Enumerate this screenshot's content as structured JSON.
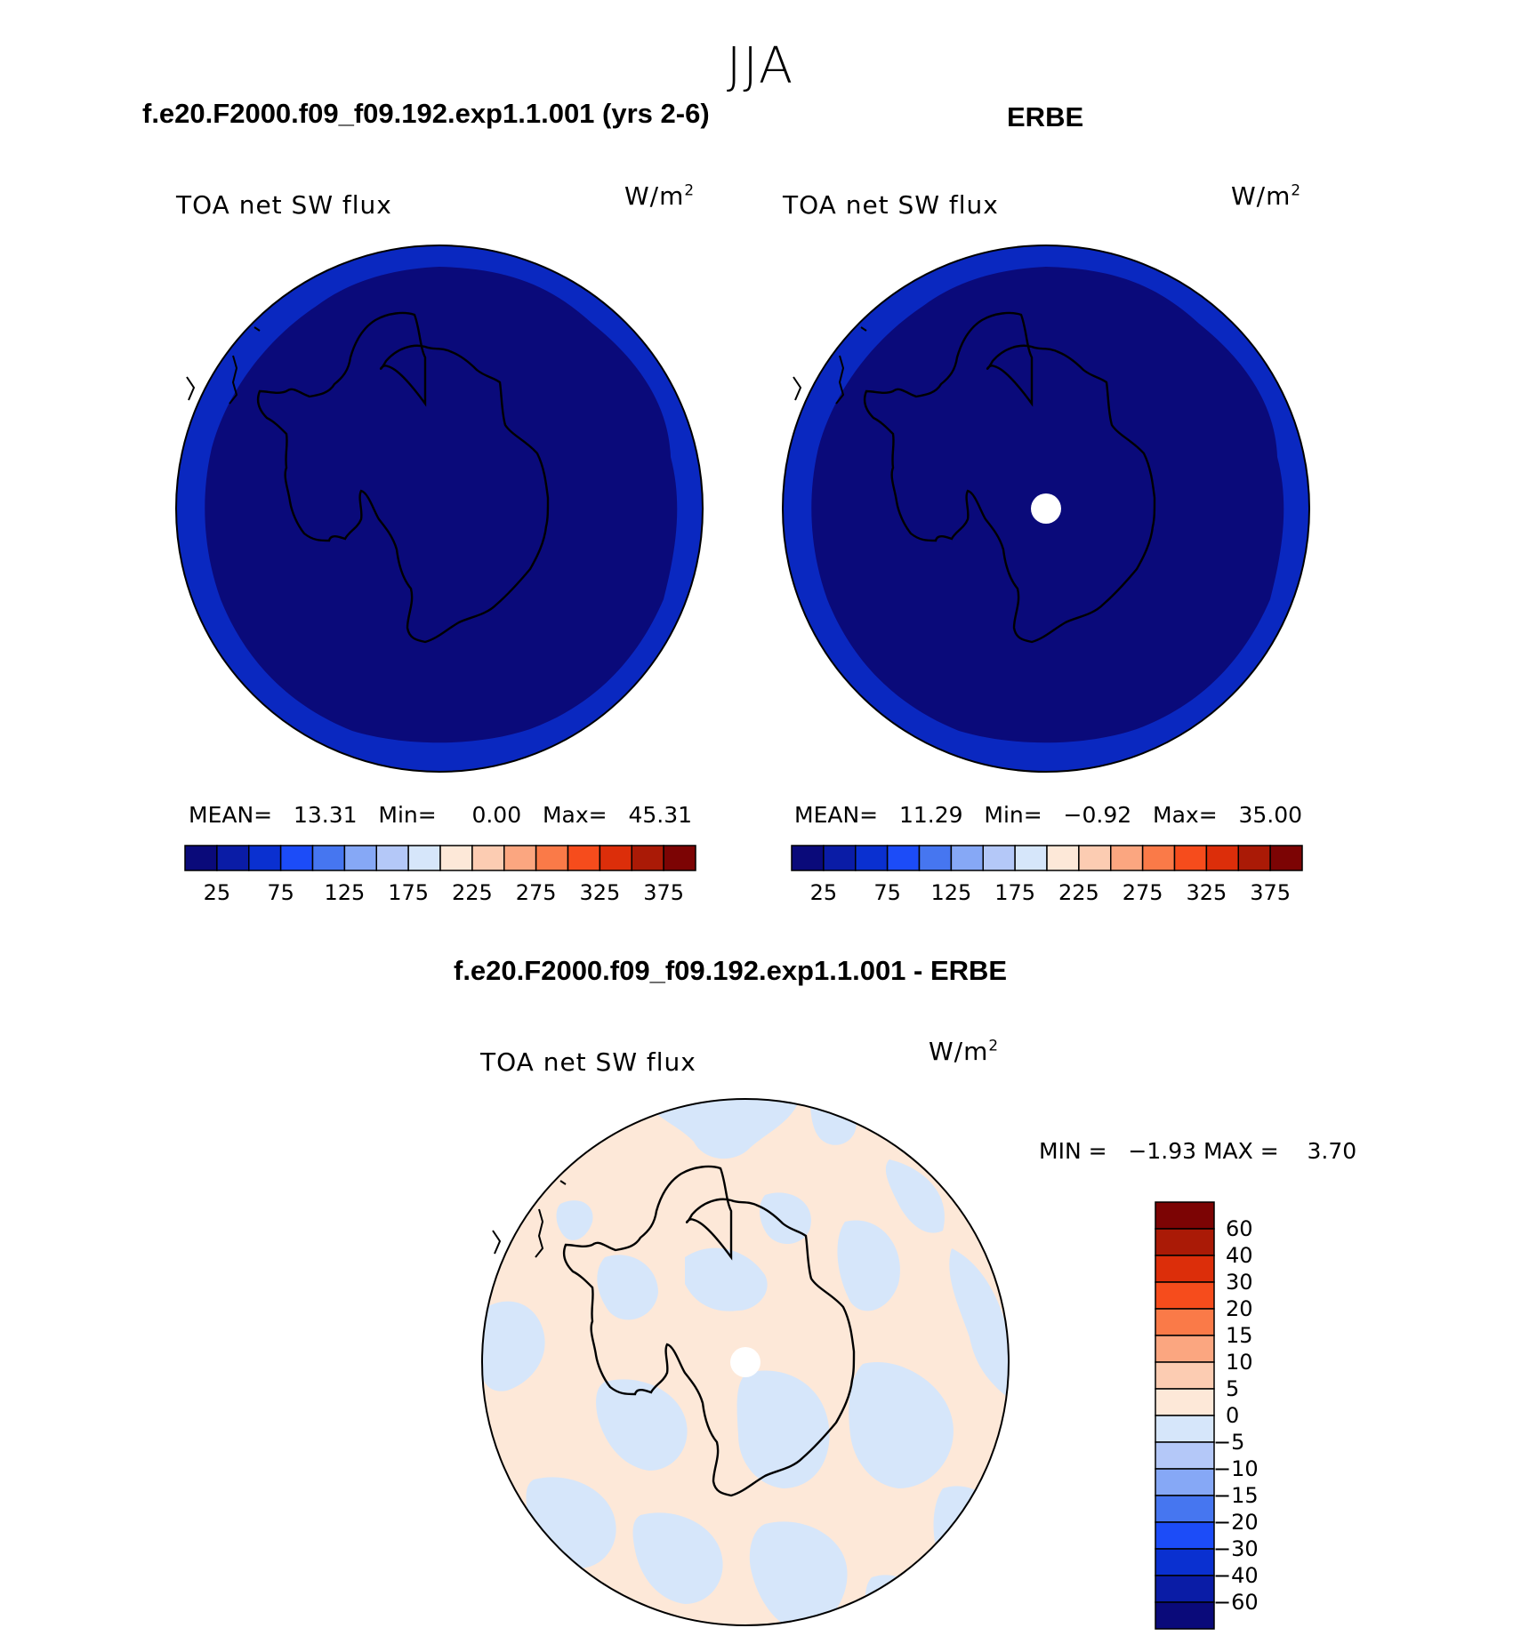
{
  "season": "JJA",
  "panels": [
    {
      "id": "model",
      "title": "f.e20.F2000.f09_f09.192.exp1.1.001 (yrs 2-6)",
      "variable": "TOA net SW flux",
      "units_base": "W/m",
      "units_exp": "2",
      "stats": {
        "mean_label": "MEAN=",
        "mean": "13.31",
        "min_label": "Min=",
        "min": "0.00",
        "max_label": "Max=",
        "max": "45.31"
      },
      "inner_color": "#0a0a7a",
      "outer_color": "#0a28c0",
      "pole_hole": false
    },
    {
      "id": "obs",
      "title": "ERBE",
      "variable": "TOA net SW flux",
      "units_base": "W/m",
      "units_exp": "2",
      "stats": {
        "mean_label": "MEAN=",
        "mean": "11.29",
        "min_label": "Min=",
        "min": "−0.92",
        "max_label": "Max=",
        "max": "35.00"
      },
      "inner_color": "#0a0a7a",
      "outer_color": "#0a28c0",
      "pole_hole": true
    }
  ],
  "colorbar": {
    "colors": [
      "#0a0a7a",
      "#0a1ca6",
      "#0a30d0",
      "#1c4cf8",
      "#4676f0",
      "#86a8f6",
      "#b4c8f8",
      "#d6e6fa",
      "#fde8d8",
      "#fcccb2",
      "#fba680",
      "#fa7a48",
      "#f64c1c",
      "#dc2e0a",
      "#aa1a06",
      "#7c0404"
    ],
    "tick_labels": [
      "25",
      "75",
      "125",
      "175",
      "225",
      "275",
      "325",
      "375"
    ]
  },
  "diff": {
    "title": "f.e20.F2000.f09_f09.192.exp1.1.001 - ERBE",
    "variable": "TOA net SW flux",
    "units_base": "W/m",
    "units_exp": "2",
    "min_label": "MIN =",
    "min": "−1.93",
    "max_label": "MAX =",
    "max": "3.70",
    "base_color": "#fde8d8",
    "patch_color": "#d6e6fa",
    "colorbar_colors": [
      "#7c0404",
      "#aa1a06",
      "#dc2e0a",
      "#f64c1c",
      "#fa7a48",
      "#fba680",
      "#fcccb2",
      "#fde8d8",
      "#d6e6fa",
      "#b4c8f8",
      "#86a8f6",
      "#4676f0",
      "#1c4cf8",
      "#0a30d0",
      "#0a1ca6",
      "#0a0a7a"
    ],
    "colorbar_labels": [
      "60",
      "40",
      "30",
      "20",
      "15",
      "10",
      "5",
      "0",
      "−5",
      "−10",
      "−15",
      "−20",
      "−30",
      "−40",
      "−60"
    ]
  }
}
